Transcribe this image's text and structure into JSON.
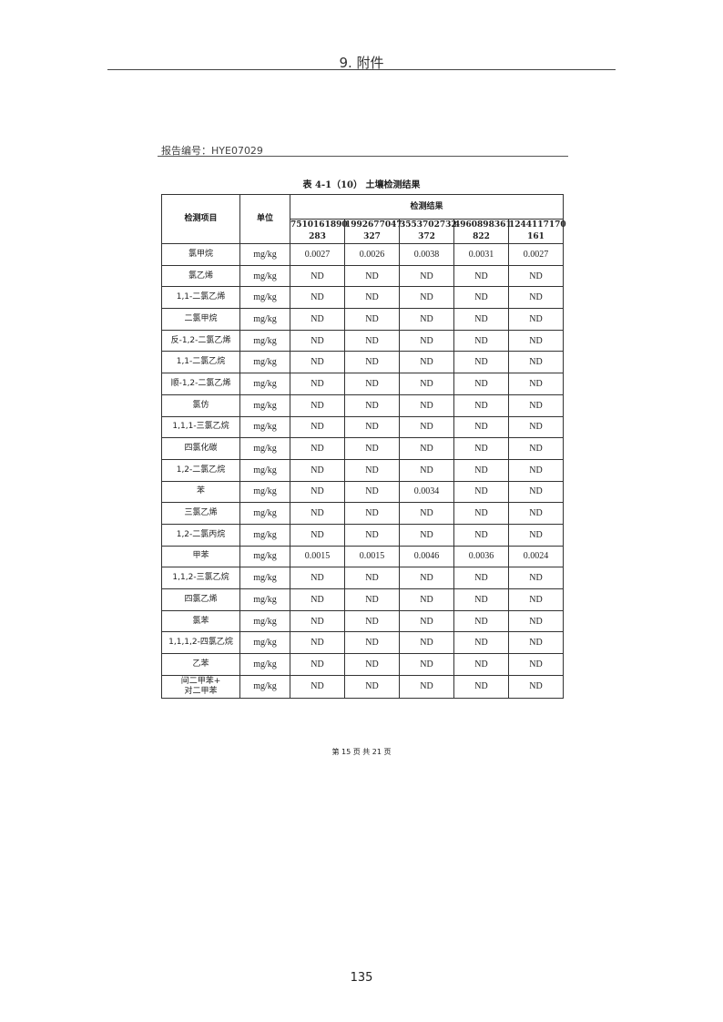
{
  "header": {
    "title": "9. 附件"
  },
  "report_no": "报告编号：HYE07029",
  "caption": "表 4-1（10） 土壤检测结果",
  "table": {
    "col_item": "检测项目",
    "col_unit": "单位",
    "col_results": "检测结果",
    "sample_ids": [
      [
        "7510161890",
        "283"
      ],
      [
        "1992677047",
        "327"
      ],
      [
        "3553702732",
        "372"
      ],
      [
        "4960898361",
        "822"
      ],
      [
        "1244117170",
        "161"
      ]
    ],
    "rows": [
      {
        "item": "氯甲烷",
        "unit": "mg/kg",
        "values": [
          "0.0027",
          "0.0026",
          "0.0038",
          "0.0031",
          "0.0027"
        ]
      },
      {
        "item": "氯乙烯",
        "unit": "mg/kg",
        "values": [
          "ND",
          "ND",
          "ND",
          "ND",
          "ND"
        ]
      },
      {
        "item": "1,1-二氯乙烯",
        "unit": "mg/kg",
        "values": [
          "ND",
          "ND",
          "ND",
          "ND",
          "ND"
        ]
      },
      {
        "item": "二氯甲烷",
        "unit": "mg/kg",
        "values": [
          "ND",
          "ND",
          "ND",
          "ND",
          "ND"
        ]
      },
      {
        "item": "反-1,2-二氯乙烯",
        "unit": "mg/kg",
        "values": [
          "ND",
          "ND",
          "ND",
          "ND",
          "ND"
        ]
      },
      {
        "item": "1,1-二氯乙烷",
        "unit": "mg/kg",
        "values": [
          "ND",
          "ND",
          "ND",
          "ND",
          "ND"
        ]
      },
      {
        "item": "顺-1,2-二氯乙烯",
        "unit": "mg/kg",
        "values": [
          "ND",
          "ND",
          "ND",
          "ND",
          "ND"
        ]
      },
      {
        "item": "氯仿",
        "unit": "mg/kg",
        "values": [
          "ND",
          "ND",
          "ND",
          "ND",
          "ND"
        ]
      },
      {
        "item": "1,1,1-三氯乙烷",
        "unit": "mg/kg",
        "values": [
          "ND",
          "ND",
          "ND",
          "ND",
          "ND"
        ]
      },
      {
        "item": "四氯化碳",
        "unit": "mg/kg",
        "values": [
          "ND",
          "ND",
          "ND",
          "ND",
          "ND"
        ]
      },
      {
        "item": "1,2-二氯乙烷",
        "unit": "mg/kg",
        "values": [
          "ND",
          "ND",
          "ND",
          "ND",
          "ND"
        ]
      },
      {
        "item": "苯",
        "unit": "mg/kg",
        "values": [
          "ND",
          "ND",
          "0.0034",
          "ND",
          "ND"
        ]
      },
      {
        "item": "三氯乙烯",
        "unit": "mg/kg",
        "values": [
          "ND",
          "ND",
          "ND",
          "ND",
          "ND"
        ]
      },
      {
        "item": "1,2-二氯丙烷",
        "unit": "mg/kg",
        "values": [
          "ND",
          "ND",
          "ND",
          "ND",
          "ND"
        ]
      },
      {
        "item": "甲苯",
        "unit": "mg/kg",
        "values": [
          "0.0015",
          "0.0015",
          "0.0046",
          "0.0036",
          "0.0024"
        ]
      },
      {
        "item": "1,1,2-三氯乙烷",
        "unit": "mg/kg",
        "values": [
          "ND",
          "ND",
          "ND",
          "ND",
          "ND"
        ]
      },
      {
        "item": "四氯乙烯",
        "unit": "mg/kg",
        "values": [
          "ND",
          "ND",
          "ND",
          "ND",
          "ND"
        ]
      },
      {
        "item": "氯苯",
        "unit": "mg/kg",
        "values": [
          "ND",
          "ND",
          "ND",
          "ND",
          "ND"
        ]
      },
      {
        "item": "1,1,1,2-四氯乙烷",
        "unit": "mg/kg",
        "values": [
          "ND",
          "ND",
          "ND",
          "ND",
          "ND"
        ]
      },
      {
        "item": "乙苯",
        "unit": "mg/kg",
        "values": [
          "ND",
          "ND",
          "ND",
          "ND",
          "ND"
        ]
      },
      {
        "item": "间二甲苯+\n对二甲苯",
        "unit": "mg/kg",
        "values": [
          "ND",
          "ND",
          "ND",
          "ND",
          "ND"
        ]
      }
    ]
  },
  "footer": "第 15 页 共 21 页",
  "page_number": "135"
}
